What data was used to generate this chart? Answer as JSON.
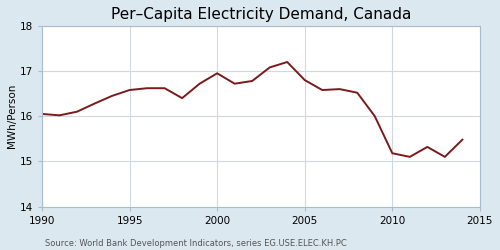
{
  "title": "Per–Capita Electricity Demand, Canada",
  "ylabel": "MWh/Person",
  "source": "Source: World Bank Development Indicators, series EG.USE.ELEC.KH.PC",
  "xlim": [
    1990,
    2015
  ],
  "ylim": [
    14,
    18
  ],
  "yticks": [
    14,
    15,
    16,
    17,
    18
  ],
  "xticks": [
    1990,
    1995,
    2000,
    2005,
    2010,
    2015
  ],
  "line_color": "#7a1a1a",
  "line_width": 1.4,
  "figure_bg": "#dce8f0",
  "plot_bg": "#ffffff",
  "grid_color": "#d0d8e0",
  "spine_color": "#aabbcc",
  "years": [
    1990,
    1991,
    1992,
    1993,
    1994,
    1995,
    1996,
    1997,
    1998,
    1999,
    2000,
    2001,
    2002,
    2003,
    2004,
    2005,
    2006,
    2007,
    2008,
    2009,
    2010,
    2011,
    2012,
    2013,
    2014
  ],
  "values": [
    16.05,
    16.02,
    16.1,
    16.28,
    16.45,
    16.58,
    16.62,
    16.62,
    16.4,
    16.72,
    16.95,
    16.72,
    16.78,
    17.08,
    17.2,
    16.8,
    16.58,
    16.6,
    16.52,
    16.0,
    15.18,
    15.1,
    15.32,
    15.1,
    15.48
  ],
  "title_fontsize": 11,
  "ylabel_fontsize": 7.5,
  "source_fontsize": 6,
  "tick_fontsize": 7.5
}
